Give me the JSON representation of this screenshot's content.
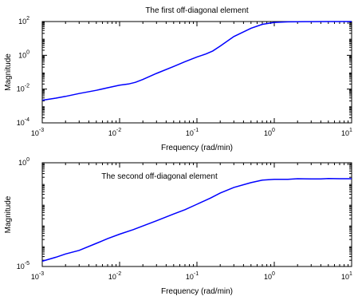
{
  "chart_data": [
    {
      "type": "line",
      "title": "The first off-diagonal element",
      "xlabel": "Frequency (rad/min)",
      "ylabel": "Magnitude",
      "xscale": "log",
      "yscale": "log",
      "xlim": [
        0.001,
        10
      ],
      "ylim": [
        0.0001,
        100
      ],
      "xticks": [
        {
          "base": "10",
          "exp": "-3",
          "value": 0.001
        },
        {
          "base": "10",
          "exp": "-2",
          "value": 0.01
        },
        {
          "base": "10",
          "exp": "-1",
          "value": 0.1
        },
        {
          "base": "10",
          "exp": "0",
          "value": 1
        },
        {
          "base": "10",
          "exp": "1",
          "value": 10
        }
      ],
      "yticks": [
        {
          "base": "10",
          "exp": "-4",
          "value": 0.0001
        },
        {
          "base": "10",
          "exp": "-2",
          "value": 0.01
        },
        {
          "base": "10",
          "exp": "0",
          "value": 1
        },
        {
          "base": "10",
          "exp": "2",
          "value": 100
        }
      ],
      "title_placement": "top-center",
      "grid": false,
      "color": "#0000ff",
      "series": [
        {
          "x": [
            0.001,
            0.0015,
            0.002,
            0.003,
            0.005,
            0.007,
            0.01,
            0.013,
            0.016,
            0.02,
            0.03,
            0.05,
            0.07,
            0.1,
            0.13,
            0.16,
            0.2,
            0.3,
            0.5,
            0.7,
            1,
            1.5,
            2,
            3,
            5,
            10
          ],
          "y": [
            0.0022,
            0.0029,
            0.0037,
            0.0055,
            0.0085,
            0.012,
            0.017,
            0.02,
            0.025,
            0.037,
            0.085,
            0.22,
            0.42,
            0.8,
            1.2,
            1.8,
            3.5,
            13,
            40,
            68,
            89,
            96,
            98,
            99,
            100,
            100
          ]
        }
      ]
    },
    {
      "type": "line",
      "title": "The second off-diagonal element",
      "xlabel": "Frequency (rad/min)",
      "ylabel": "Magnitude",
      "xscale": "log",
      "yscale": "log",
      "xlim": [
        0.001,
        10
      ],
      "ylim": [
        1e-05,
        1
      ],
      "xticks": [
        {
          "base": "10",
          "exp": "-3",
          "value": 0.001
        },
        {
          "base": "10",
          "exp": "-2",
          "value": 0.01
        },
        {
          "base": "10",
          "exp": "-1",
          "value": 0.1
        },
        {
          "base": "10",
          "exp": "0",
          "value": 1
        },
        {
          "base": "10",
          "exp": "1",
          "value": 10
        }
      ],
      "yticks": [
        {
          "base": "10",
          "exp": "-5",
          "value": 1e-05
        },
        {
          "base": "10",
          "exp": "0",
          "value": 1
        }
      ],
      "title_placement": "inside-top",
      "grid": false,
      "color": "#0000ff",
      "series": [
        {
          "x": [
            0.001,
            0.0015,
            0.002,
            0.003,
            0.005,
            0.007,
            0.01,
            0.015,
            0.02,
            0.03,
            0.05,
            0.07,
            0.1,
            0.15,
            0.2,
            0.3,
            0.5,
            0.7,
            1,
            1.5,
            2,
            3,
            4,
            5,
            7,
            10
          ],
          "y": [
            1.8e-05,
            2.8e-05,
            4e-05,
            6e-05,
            0.00013,
            0.00022,
            0.00036,
            0.0006,
            0.0009,
            0.0016,
            0.0034,
            0.0055,
            0.01,
            0.02,
            0.035,
            0.065,
            0.11,
            0.145,
            0.16,
            0.16,
            0.17,
            0.165,
            0.165,
            0.175,
            0.17,
            0.17
          ]
        }
      ]
    }
  ]
}
